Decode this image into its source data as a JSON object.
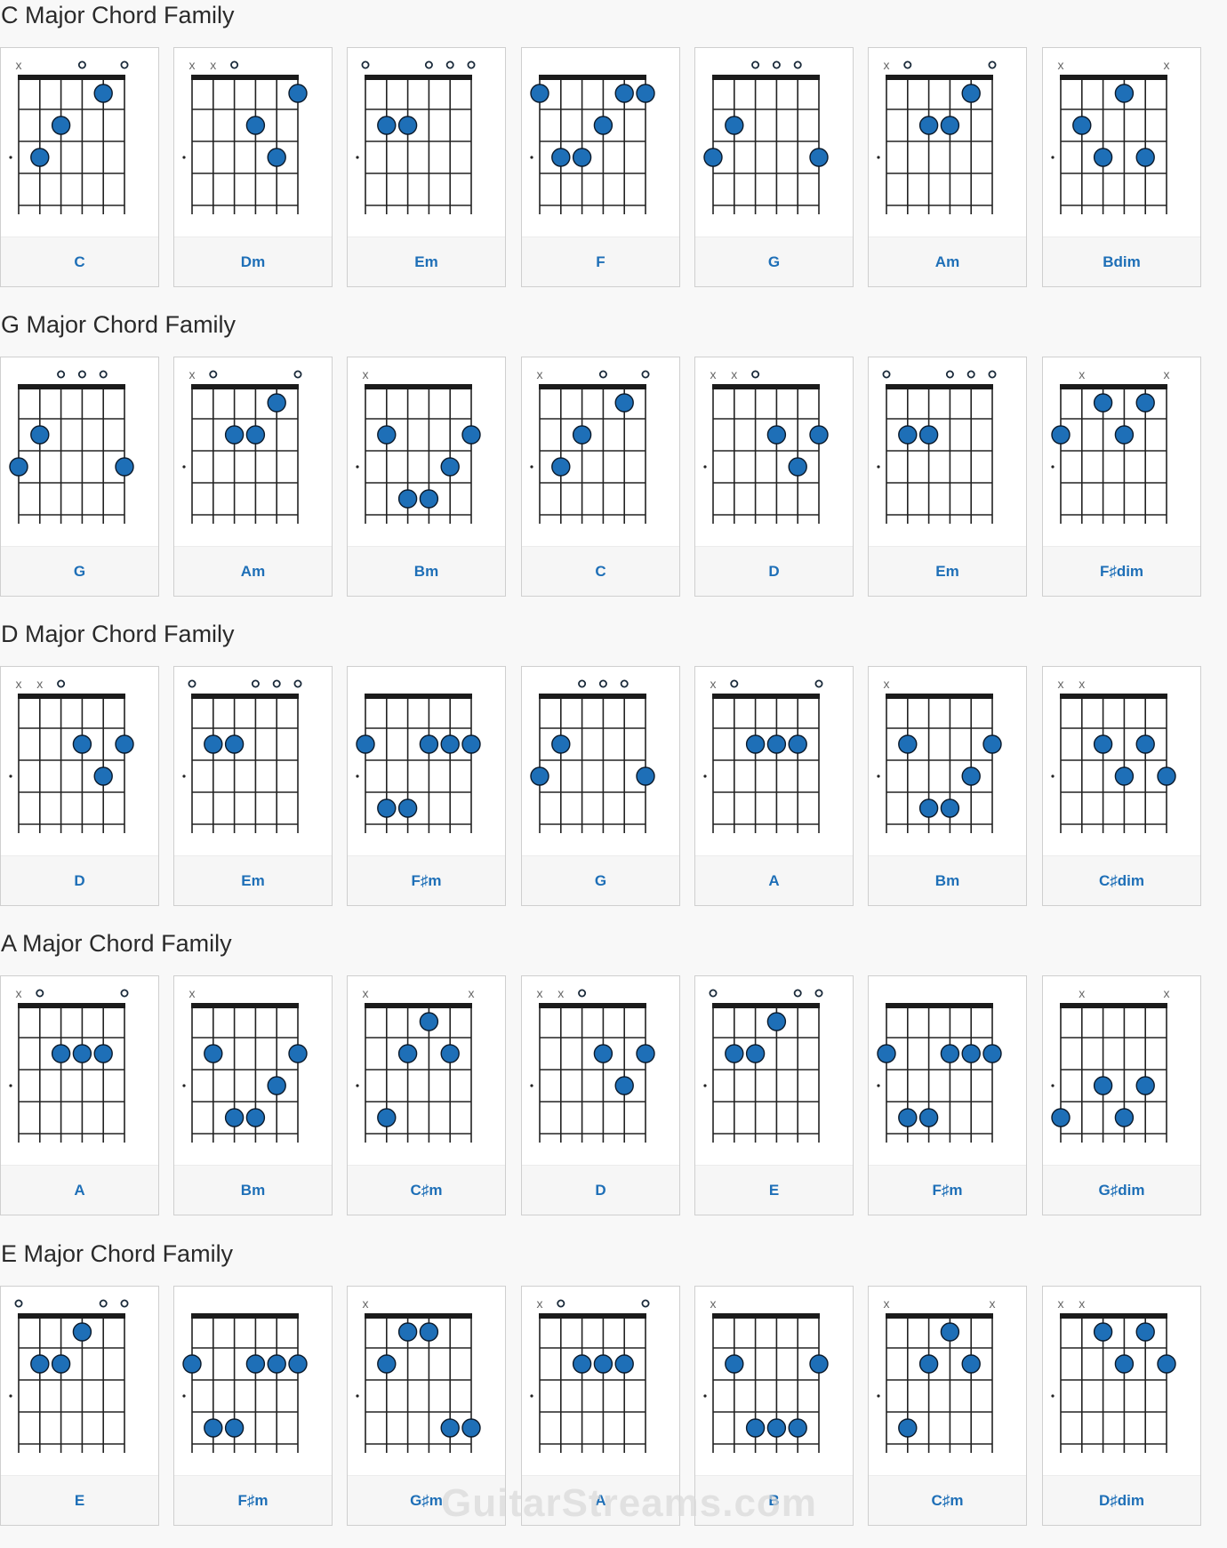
{
  "families": [
    {
      "title": "C Major Chord Family",
      "chords": [
        {
          "name": "C",
          "markers": [
            "x",
            "",
            "",
            "o",
            "",
            "o"
          ],
          "dots": [
            [
              1,
              3
            ],
            [
              2,
              2
            ],
            [
              4,
              1
            ]
          ]
        },
        {
          "name": "Dm",
          "markers": [
            "x",
            "x",
            "o",
            "",
            "",
            ""
          ],
          "dots": [
            [
              3,
              2
            ],
            [
              4,
              3
            ],
            [
              5,
              1
            ]
          ]
        },
        {
          "name": "Em",
          "markers": [
            "o",
            "",
            "",
            "o",
            "o",
            "o"
          ],
          "dots": [
            [
              1,
              2
            ],
            [
              2,
              2
            ]
          ]
        },
        {
          "name": "F",
          "markers": [
            "",
            "",
            "",
            "",
            "",
            ""
          ],
          "dots": [
            [
              0,
              1
            ],
            [
              1,
              3
            ],
            [
              2,
              3
            ],
            [
              3,
              2
            ],
            [
              4,
              1
            ],
            [
              5,
              1
            ]
          ]
        },
        {
          "name": "G",
          "markers": [
            "",
            "",
            "o",
            "o",
            "o",
            ""
          ],
          "dots": [
            [
              0,
              3
            ],
            [
              1,
              2
            ],
            [
              5,
              3
            ]
          ]
        },
        {
          "name": "Am",
          "markers": [
            "x",
            "o",
            "",
            "",
            "",
            "o"
          ],
          "dots": [
            [
              2,
              2
            ],
            [
              3,
              2
            ],
            [
              4,
              1
            ]
          ]
        },
        {
          "name": "Bdim",
          "markers": [
            "x",
            "",
            "",
            "",
            "",
            "x"
          ],
          "dots": [
            [
              1,
              2
            ],
            [
              2,
              3
            ],
            [
              3,
              1
            ],
            [
              4,
              3
            ]
          ]
        }
      ]
    },
    {
      "title": "G Major Chord Family",
      "chords": [
        {
          "name": "G",
          "markers": [
            "",
            "",
            "o",
            "o",
            "o",
            ""
          ],
          "dots": [
            [
              0,
              3
            ],
            [
              1,
              2
            ],
            [
              5,
              3
            ]
          ]
        },
        {
          "name": "Am",
          "markers": [
            "x",
            "o",
            "",
            "",
            "",
            "o"
          ],
          "dots": [
            [
              2,
              2
            ],
            [
              3,
              2
            ],
            [
              4,
              1
            ]
          ]
        },
        {
          "name": "Bm",
          "markers": [
            "x",
            "",
            "",
            "",
            "",
            ""
          ],
          "dots": [
            [
              1,
              2
            ],
            [
              2,
              4
            ],
            [
              3,
              4
            ],
            [
              4,
              3
            ],
            [
              5,
              2
            ]
          ]
        },
        {
          "name": "C",
          "markers": [
            "x",
            "",
            "",
            "o",
            "",
            "o"
          ],
          "dots": [
            [
              1,
              3
            ],
            [
              2,
              2
            ],
            [
              4,
              1
            ]
          ]
        },
        {
          "name": "D",
          "markers": [
            "x",
            "x",
            "o",
            "",
            "",
            ""
          ],
          "dots": [
            [
              3,
              2
            ],
            [
              4,
              3
            ],
            [
              5,
              2
            ]
          ]
        },
        {
          "name": "Em",
          "markers": [
            "o",
            "",
            "",
            "o",
            "o",
            "o"
          ],
          "dots": [
            [
              1,
              2
            ],
            [
              2,
              2
            ]
          ]
        },
        {
          "name": "F♯dim",
          "markers": [
            "",
            "x",
            "",
            "",
            "",
            "x"
          ],
          "dots": [
            [
              0,
              2
            ],
            [
              2,
              1
            ],
            [
              3,
              2
            ],
            [
              4,
              1
            ]
          ]
        }
      ]
    },
    {
      "title": "D Major Chord Family",
      "chords": [
        {
          "name": "D",
          "markers": [
            "x",
            "x",
            "o",
            "",
            "",
            ""
          ],
          "dots": [
            [
              3,
              2
            ],
            [
              4,
              3
            ],
            [
              5,
              2
            ]
          ]
        },
        {
          "name": "Em",
          "markers": [
            "o",
            "",
            "",
            "o",
            "o",
            "o"
          ],
          "dots": [
            [
              1,
              2
            ],
            [
              2,
              2
            ]
          ]
        },
        {
          "name": "F♯m",
          "markers": [
            "",
            "",
            "",
            "",
            "",
            ""
          ],
          "dots": [
            [
              0,
              2
            ],
            [
              1,
              4
            ],
            [
              2,
              4
            ],
            [
              3,
              2
            ],
            [
              4,
              2
            ],
            [
              5,
              2
            ]
          ]
        },
        {
          "name": "G",
          "markers": [
            "",
            "",
            "o",
            "o",
            "o",
            ""
          ],
          "dots": [
            [
              0,
              3
            ],
            [
              1,
              2
            ],
            [
              5,
              3
            ]
          ]
        },
        {
          "name": "A",
          "markers": [
            "x",
            "o",
            "",
            "",
            "",
            "o"
          ],
          "dots": [
            [
              2,
              2
            ],
            [
              3,
              2
            ],
            [
              4,
              2
            ]
          ]
        },
        {
          "name": "Bm",
          "markers": [
            "x",
            "",
            "",
            "",
            "",
            ""
          ],
          "dots": [
            [
              1,
              2
            ],
            [
              2,
              4
            ],
            [
              3,
              4
            ],
            [
              4,
              3
            ],
            [
              5,
              2
            ]
          ]
        },
        {
          "name": "C♯dim",
          "markers": [
            "x",
            "x",
            "",
            "",
            "",
            ""
          ],
          "dots": [
            [
              2,
              2
            ],
            [
              3,
              3
            ],
            [
              4,
              2
            ],
            [
              5,
              3
            ]
          ]
        }
      ]
    },
    {
      "title": "A Major Chord Family",
      "chords": [
        {
          "name": "A",
          "markers": [
            "x",
            "o",
            "",
            "",
            "",
            "o"
          ],
          "dots": [
            [
              2,
              2
            ],
            [
              3,
              2
            ],
            [
              4,
              2
            ]
          ]
        },
        {
          "name": "Bm",
          "markers": [
            "x",
            "",
            "",
            "",
            "",
            ""
          ],
          "dots": [
            [
              1,
              2
            ],
            [
              2,
              4
            ],
            [
              3,
              4
            ],
            [
              4,
              3
            ],
            [
              5,
              2
            ]
          ]
        },
        {
          "name": "C♯m",
          "markers": [
            "x",
            "",
            "",
            "",
            "",
            "x"
          ],
          "dots": [
            [
              1,
              4
            ],
            [
              2,
              2
            ],
            [
              3,
              1
            ],
            [
              4,
              2
            ]
          ]
        },
        {
          "name": "D",
          "markers": [
            "x",
            "x",
            "o",
            "",
            "",
            ""
          ],
          "dots": [
            [
              3,
              2
            ],
            [
              4,
              3
            ],
            [
              5,
              2
            ]
          ]
        },
        {
          "name": "E",
          "markers": [
            "o",
            "",
            "",
            "",
            "o",
            "o"
          ],
          "dots": [
            [
              1,
              2
            ],
            [
              2,
              2
            ],
            [
              3,
              1
            ]
          ]
        },
        {
          "name": "F♯m",
          "markers": [
            "",
            "",
            "",
            "",
            "",
            ""
          ],
          "dots": [
            [
              0,
              2
            ],
            [
              1,
              4
            ],
            [
              2,
              4
            ],
            [
              3,
              2
            ],
            [
              4,
              2
            ],
            [
              5,
              2
            ]
          ]
        },
        {
          "name": "G♯dim",
          "markers": [
            "",
            "x",
            "",
            "",
            "",
            "x"
          ],
          "dots": [
            [
              0,
              4
            ],
            [
              2,
              3
            ],
            [
              3,
              4
            ],
            [
              4,
              3
            ]
          ]
        }
      ]
    },
    {
      "title": "E Major Chord Family",
      "chords": [
        {
          "name": "E",
          "markers": [
            "o",
            "",
            "",
            "",
            "o",
            "o"
          ],
          "dots": [
            [
              1,
              2
            ],
            [
              2,
              2
            ],
            [
              3,
              1
            ]
          ]
        },
        {
          "name": "F♯m",
          "markers": [
            "",
            "",
            "",
            "",
            "",
            ""
          ],
          "dots": [
            [
              0,
              2
            ],
            [
              1,
              4
            ],
            [
              2,
              4
            ],
            [
              3,
              2
            ],
            [
              4,
              2
            ],
            [
              5,
              2
            ]
          ]
        },
        {
          "name": "G♯m",
          "markers": [
            "x",
            "",
            "",
            "",
            "",
            ""
          ],
          "dots": [
            [
              1,
              2
            ],
            [
              2,
              1
            ],
            [
              3,
              1
            ],
            [
              4,
              4
            ],
            [
              5,
              4
            ]
          ]
        },
        {
          "name": "A",
          "markers": [
            "x",
            "o",
            "",
            "",
            "",
            "o"
          ],
          "dots": [
            [
              2,
              2
            ],
            [
              3,
              2
            ],
            [
              4,
              2
            ]
          ]
        },
        {
          "name": "B",
          "markers": [
            "x",
            "",
            "",
            "",
            "",
            ""
          ],
          "dots": [
            [
              1,
              2
            ],
            [
              2,
              4
            ],
            [
              3,
              4
            ],
            [
              4,
              4
            ],
            [
              5,
              2
            ]
          ]
        },
        {
          "name": "C♯m",
          "markers": [
            "x",
            "",
            "",
            "",
            "",
            "x"
          ],
          "dots": [
            [
              1,
              4
            ],
            [
              2,
              2
            ],
            [
              3,
              1
            ],
            [
              4,
              2
            ]
          ]
        },
        {
          "name": "D♯dim",
          "markers": [
            "x",
            "x",
            "",
            "",
            "",
            ""
          ],
          "dots": [
            [
              2,
              1
            ],
            [
              3,
              2
            ],
            [
              4,
              1
            ],
            [
              5,
              2
            ]
          ]
        }
      ]
    }
  ],
  "watermark": "GuitarStreams.com",
  "colors": {
    "dot": "#1e6fb7",
    "dot_outline": "#0b1a2b",
    "name": "#1e6fb7",
    "title": "#2a2a2a"
  }
}
